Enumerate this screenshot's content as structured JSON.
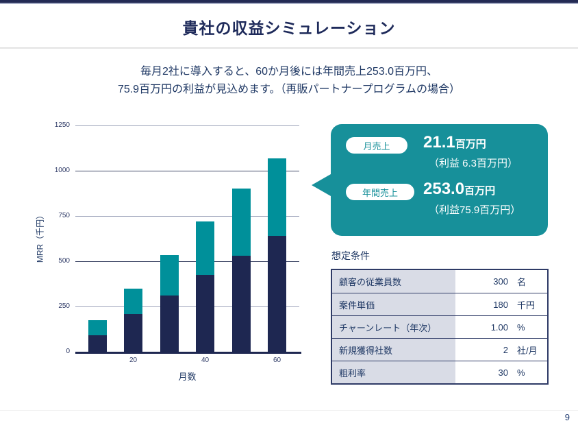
{
  "slide": {
    "title": "貴社の収益シミュレーション",
    "subtitle_line1": "毎月2社に導入すると、60か月後には年間売上253.0百万円、",
    "subtitle_line2": "75.9百万円の利益が見込めます。（再販パートナープログラムの場合）",
    "page_number": "9"
  },
  "callout": {
    "rows": [
      {
        "badge": "月売上",
        "value": "21.1",
        "unit": "百万円",
        "profit": "（利益 6.3百万円）"
      },
      {
        "badge": "年間売上",
        "value": "253.0",
        "unit": "百万円",
        "profit": "（利益75.9百万円）"
      }
    ],
    "background_color": "#17909a"
  },
  "conditions": {
    "title": "想定条件",
    "rows": [
      {
        "label": "顧客の従業員数",
        "value": "300",
        "unit": "名"
      },
      {
        "label": "案件単価",
        "value": "180",
        "unit": "千円"
      },
      {
        "label": "チャーンレート（年次）",
        "value": "1.00",
        "unit": "%"
      },
      {
        "label": "新規獲得社数",
        "value": "2",
        "unit": "社/月"
      },
      {
        "label": "粗利率",
        "value": "30",
        "unit": "%"
      }
    ]
  },
  "chart_data": {
    "type": "bar",
    "stacked": true,
    "x": [
      10,
      20,
      30,
      40,
      50,
      60
    ],
    "x_ticks": [
      20,
      40,
      60
    ],
    "series": [
      {
        "name": "series-navy",
        "color": "#1e2751",
        "values": [
          90,
          210,
          310,
          425,
          530,
          640
        ]
      },
      {
        "name": "series-teal",
        "color": "#00909a",
        "values": [
          85,
          140,
          225,
          295,
          370,
          430
        ]
      }
    ],
    "totals": [
      175,
      350,
      535,
      720,
      900,
      1070
    ],
    "title": "",
    "xlabel": "月数",
    "ylabel": "MRR（千円）",
    "ylim": [
      0,
      1250
    ],
    "yticks": [
      0,
      250,
      500,
      750,
      1000,
      1250
    ],
    "grid": true,
    "grid_color_minor": "#9aa1b8",
    "grid_color_major": "#3d4665",
    "legend": "none"
  }
}
